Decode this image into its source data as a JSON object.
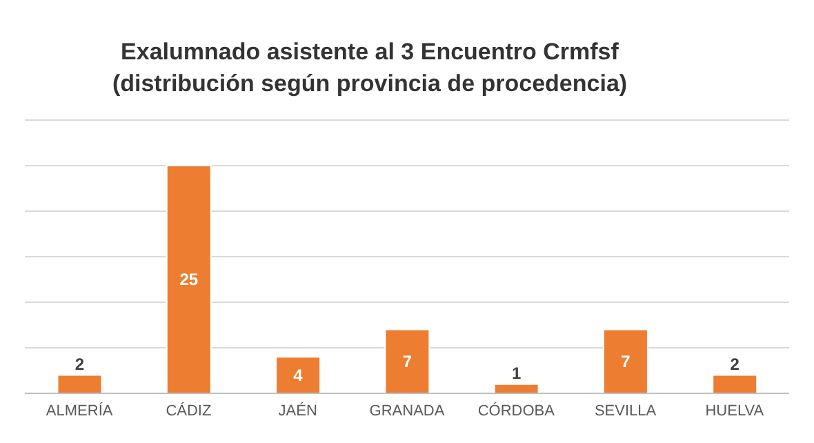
{
  "chart_data": {
    "type": "bar",
    "title": "Exalumnado asistente al 3 Encuentro Crmfsf\n(distribución según provincia de procedencia)",
    "categories": [
      "ALMERÍA",
      "CÁDIZ",
      "JAÉN",
      "GRANADA",
      "CÓRDOBA",
      "SEVILLA",
      "HUELVA"
    ],
    "values": [
      2,
      25,
      4,
      7,
      1,
      7,
      2
    ],
    "color": "#ed7d31",
    "ylim": [
      0,
      30
    ],
    "yticks": [
      {
        "value": 0,
        "label": null
      },
      {
        "value": 5,
        "label": null
      },
      {
        "value": 10,
        "label": null
      },
      {
        "value": 15,
        "label": null
      },
      {
        "value": 20,
        "label": null
      },
      {
        "value": 25,
        "label": null
      },
      {
        "value": 30,
        "label": null
      }
    ],
    "grid": "y",
    "tick_labels": "x",
    "data_labels": true
  }
}
